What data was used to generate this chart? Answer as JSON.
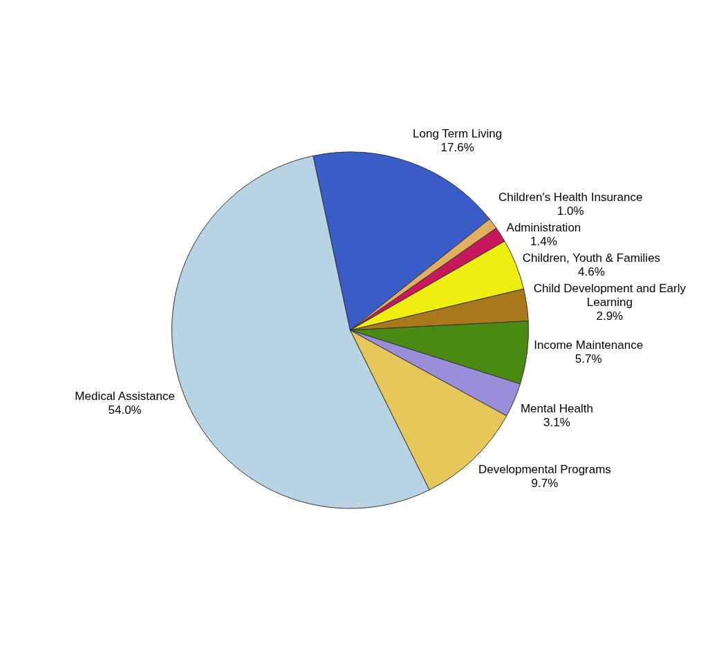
{
  "chart_data": {
    "type": "pie",
    "categories": [
      "Administration",
      "Children, Youth & Families",
      "Child Development and Early Learning",
      "Income Maintenance",
      "Mental Health",
      "Developmental Programs",
      "Medical Assistance",
      "Long Term Living",
      "Children's Health Insurance"
    ],
    "values": [
      1.4,
      4.6,
      2.9,
      5.7,
      3.1,
      9.7,
      54.0,
      17.6,
      1.0
    ],
    "value_labels": [
      "1.4%",
      "4.6%",
      "2.9%",
      "5.7%",
      "3.1%",
      "9.7%",
      "54.0%",
      "17.6%",
      "1.0%"
    ],
    "colors": [
      "#c8185c",
      "#f0ee10",
      "#a8781a",
      "#4a8a12",
      "#9a8ed8",
      "#e6c85a",
      "#b8d4e4",
      "#3a5cc6",
      "#e0b060"
    ],
    "legend": false
  }
}
